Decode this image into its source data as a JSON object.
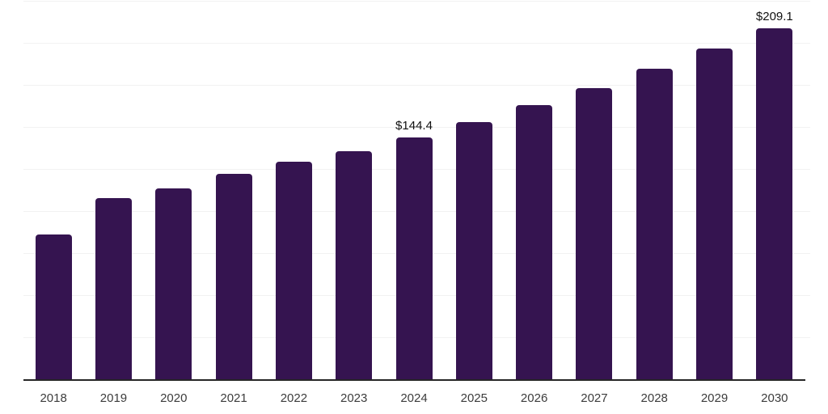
{
  "chart_data": {
    "type": "bar",
    "categories": [
      "2018",
      "2019",
      "2020",
      "2021",
      "2022",
      "2023",
      "2024",
      "2025",
      "2026",
      "2027",
      "2028",
      "2029",
      "2030"
    ],
    "values": [
      86.5,
      108.3,
      113.8,
      122.5,
      130.0,
      136.3,
      144.4,
      153.5,
      163.6,
      173.8,
      185.3,
      196.9,
      209.1
    ],
    "data_labels": [
      {
        "category": "2024",
        "text": "$144.4"
      },
      {
        "category": "2030",
        "text": "$209.1"
      }
    ],
    "title": "",
    "xlabel": "",
    "ylabel": "",
    "ylim": [
      0,
      225
    ],
    "gridline_step": 25,
    "grid": "horizontal",
    "legend": "none",
    "colors": {
      "bar": "#351450",
      "axis_line": "#262626",
      "gridline": "#f2f2f2",
      "data_label": "#111111",
      "tick_label": "#3c3c3c",
      "background": "#ffffff"
    }
  }
}
